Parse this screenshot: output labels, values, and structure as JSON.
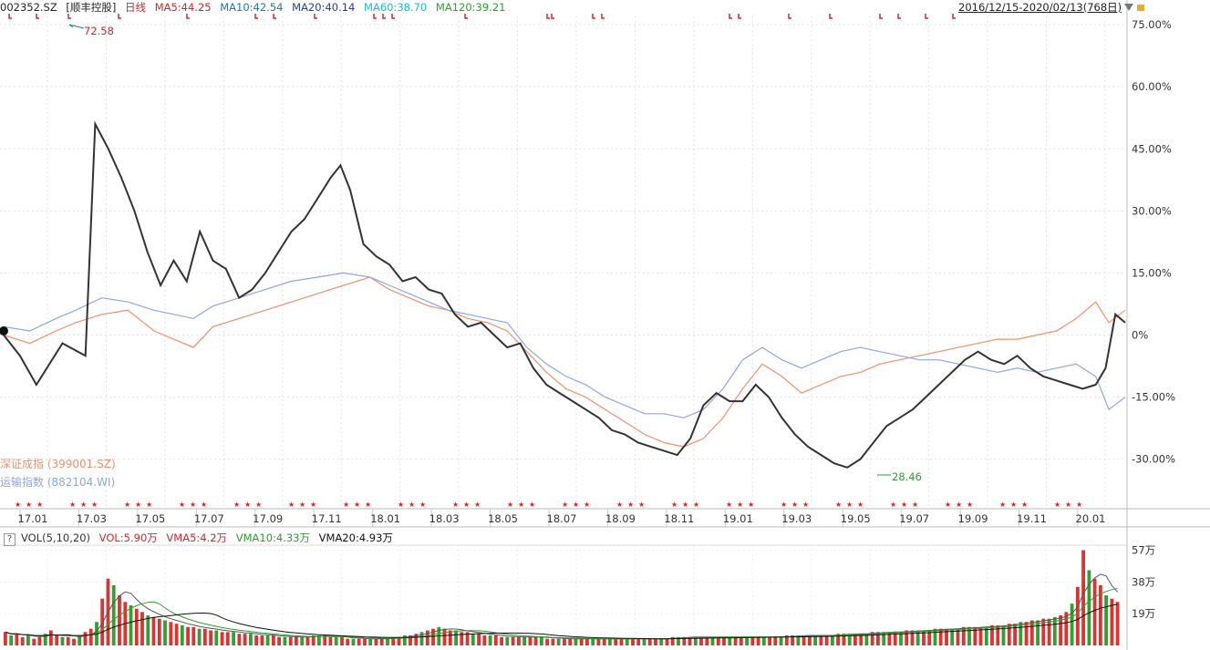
{
  "header": {
    "code": "002352.SZ",
    "name": "[顺丰控股]",
    "period": "日线",
    "ma": [
      {
        "label": "MA5:44.25",
        "color": "#d62728"
      },
      {
        "label": "MA10:42.54",
        "color": "#1f77b4"
      },
      {
        "label": "MA20:40.14",
        "color": "#1f3fa8"
      },
      {
        "label": "MA60:38.70",
        "color": "#17becf"
      },
      {
        "label": "MA120:39.21",
        "color": "#2ca02c"
      }
    ],
    "range": "2016/12/15-2020/02/13(768日)"
  },
  "legend": {
    "szse": "深证成指 (399001.SZ)",
    "transport": "运输指数 (882104.WI)"
  },
  "volume_header": {
    "help": "?",
    "title": "VOL(5,10,20)",
    "vol": "VOL:5.90万",
    "vma5": "VMA5:4.2万",
    "vma10": "VMA10:4.33万",
    "vma20": "VMA20:4.93万"
  },
  "chart_data": [
    {
      "type": "line",
      "title": "",
      "x_ticks": [
        "17.01",
        "17.03",
        "17.05",
        "17.07",
        "17.09",
        "17.11",
        "18.01",
        "18.03",
        "18.05",
        "18.07",
        "18.09",
        "18.11",
        "19.01",
        "19.03",
        "19.05",
        "19.07",
        "19.09",
        "19.11",
        "20.01"
      ],
      "y_ticks": [
        "75.00%",
        "60.00%",
        "45.00%",
        "30.00%",
        "15.00%",
        "0%",
        "-15.00%",
        "-30.00%"
      ],
      "ylim": [
        -38,
        77
      ],
      "annotations": {
        "high": "72.58",
        "low": "28.46"
      },
      "colors": {
        "stock": "#333333",
        "szse": "#f0906a",
        "transport": "#8ca6e6"
      },
      "series": [
        {
          "key": "stock",
          "points": [
            [
              0,
              0
            ],
            [
              5,
              -5
            ],
            [
              10,
              -12
            ],
            [
              18,
              -2
            ],
            [
              25,
              -5
            ],
            [
              28,
              51
            ],
            [
              32,
              45
            ],
            [
              36,
              38
            ],
            [
              40,
              30
            ],
            [
              44,
              20
            ],
            [
              48,
              12
            ],
            [
              52,
              18
            ],
            [
              56,
              13
            ],
            [
              60,
              25
            ],
            [
              64,
              18
            ],
            [
              68,
              16
            ],
            [
              72,
              9
            ],
            [
              76,
              11
            ],
            [
              80,
              15
            ],
            [
              84,
              20
            ],
            [
              88,
              25
            ],
            [
              92,
              28
            ],
            [
              96,
              33
            ],
            [
              100,
              38
            ],
            [
              103,
              41
            ],
            [
              106,
              35
            ],
            [
              110,
              22
            ],
            [
              114,
              19
            ],
            [
              118,
              17
            ],
            [
              122,
              13
            ],
            [
              126,
              14
            ],
            [
              130,
              11
            ],
            [
              134,
              10
            ],
            [
              138,
              5
            ],
            [
              142,
              2
            ],
            [
              146,
              3
            ],
            [
              150,
              0
            ],
            [
              154,
              -3
            ],
            [
              158,
              -2
            ],
            [
              162,
              -8
            ],
            [
              166,
              -12
            ],
            [
              170,
              -14
            ],
            [
              174,
              -16
            ],
            [
              178,
              -18
            ],
            [
              182,
              -20
            ],
            [
              186,
              -23
            ],
            [
              190,
              -24
            ],
            [
              194,
              -26
            ],
            [
              198,
              -27
            ],
            [
              202,
              -28
            ],
            [
              206,
              -29
            ],
            [
              210,
              -25
            ],
            [
              214,
              -17
            ],
            [
              218,
              -14
            ],
            [
              222,
              -16
            ],
            [
              226,
              -16
            ],
            [
              230,
              -12
            ],
            [
              234,
              -15
            ],
            [
              238,
              -20
            ],
            [
              242,
              -24
            ],
            [
              246,
              -27
            ],
            [
              250,
              -29
            ],
            [
              254,
              -31
            ],
            [
              258,
              -32
            ],
            [
              262,
              -30
            ],
            [
              266,
              -26
            ],
            [
              270,
              -22
            ],
            [
              274,
              -20
            ],
            [
              278,
              -18
            ],
            [
              282,
              -15
            ],
            [
              286,
              -12
            ],
            [
              290,
              -9
            ],
            [
              294,
              -6
            ],
            [
              298,
              -4
            ],
            [
              302,
              -6
            ],
            [
              306,
              -7
            ],
            [
              310,
              -5
            ],
            [
              314,
              -8
            ],
            [
              318,
              -10
            ],
            [
              322,
              -11
            ],
            [
              326,
              -12
            ],
            [
              330,
              -13
            ],
            [
              334,
              -12
            ],
            [
              337,
              -8
            ],
            [
              340,
              5
            ],
            [
              343,
              3
            ]
          ]
        },
        {
          "key": "szse",
          "points": [
            [
              0,
              0
            ],
            [
              8,
              -2
            ],
            [
              16,
              1
            ],
            [
              22,
              3
            ],
            [
              30,
              5
            ],
            [
              38,
              6
            ],
            [
              46,
              1
            ],
            [
              52,
              -1
            ],
            [
              58,
              -3
            ],
            [
              64,
              2
            ],
            [
              72,
              4
            ],
            [
              80,
              6
            ],
            [
              88,
              8
            ],
            [
              96,
              10
            ],
            [
              104,
              12
            ],
            [
              112,
              14
            ],
            [
              118,
              11
            ],
            [
              124,
              9
            ],
            [
              130,
              7
            ],
            [
              136,
              6
            ],
            [
              142,
              4
            ],
            [
              148,
              3
            ],
            [
              154,
              1
            ],
            [
              160,
              -4
            ],
            [
              166,
              -9
            ],
            [
              172,
              -13
            ],
            [
              178,
              -15
            ],
            [
              184,
              -18
            ],
            [
              190,
              -21
            ],
            [
              196,
              -24
            ],
            [
              202,
              -26
            ],
            [
              208,
              -27
            ],
            [
              214,
              -25
            ],
            [
              220,
              -20
            ],
            [
              226,
              -13
            ],
            [
              232,
              -7
            ],
            [
              238,
              -10
            ],
            [
              244,
              -14
            ],
            [
              250,
              -12
            ],
            [
              256,
              -10
            ],
            [
              262,
              -9
            ],
            [
              268,
              -7
            ],
            [
              274,
              -6
            ],
            [
              280,
              -5
            ],
            [
              286,
              -4
            ],
            [
              292,
              -3
            ],
            [
              298,
              -2
            ],
            [
              304,
              -1
            ],
            [
              310,
              -1
            ],
            [
              316,
              0
            ],
            [
              322,
              1
            ],
            [
              328,
              4
            ],
            [
              334,
              8
            ],
            [
              338,
              3
            ],
            [
              343,
              6
            ]
          ]
        },
        {
          "key": "transport",
          "points": [
            [
              0,
              2
            ],
            [
              8,
              1
            ],
            [
              16,
              4
            ],
            [
              22,
              6
            ],
            [
              30,
              9
            ],
            [
              38,
              8
            ],
            [
              46,
              6
            ],
            [
              52,
              5
            ],
            [
              58,
              4
            ],
            [
              64,
              7
            ],
            [
              72,
              9
            ],
            [
              80,
              11
            ],
            [
              88,
              13
            ],
            [
              96,
              14
            ],
            [
              104,
              15
            ],
            [
              112,
              14
            ],
            [
              118,
              12
            ],
            [
              124,
              10
            ],
            [
              130,
              8
            ],
            [
              136,
              6
            ],
            [
              142,
              5
            ],
            [
              148,
              4
            ],
            [
              154,
              3
            ],
            [
              160,
              -3
            ],
            [
              166,
              -7
            ],
            [
              172,
              -10
            ],
            [
              178,
              -12
            ],
            [
              184,
              -15
            ],
            [
              190,
              -17
            ],
            [
              196,
              -19
            ],
            [
              202,
              -19
            ],
            [
              208,
              -20
            ],
            [
              214,
              -18
            ],
            [
              220,
              -13
            ],
            [
              226,
              -6
            ],
            [
              232,
              -3
            ],
            [
              238,
              -6
            ],
            [
              244,
              -8
            ],
            [
              250,
              -6
            ],
            [
              256,
              -4
            ],
            [
              262,
              -3
            ],
            [
              268,
              -4
            ],
            [
              274,
              -5
            ],
            [
              280,
              -6
            ],
            [
              286,
              -6
            ],
            [
              292,
              -7
            ],
            [
              298,
              -8
            ],
            [
              304,
              -9
            ],
            [
              310,
              -8
            ],
            [
              316,
              -9
            ],
            [
              322,
              -8
            ],
            [
              328,
              -7
            ],
            [
              334,
              -10
            ],
            [
              338,
              -18
            ],
            [
              343,
              -15
            ]
          ]
        }
      ]
    },
    {
      "type": "bar",
      "title": "",
      "y_ticks": [
        "57万",
        "38万",
        "19万"
      ],
      "ylim": [
        0,
        60
      ],
      "colors": {
        "up": "#e03030",
        "down": "#30a030",
        "ma5": "#555555",
        "ma10": "#2ca02c",
        "ma20": "#111111"
      },
      "values": [
        8,
        6,
        7,
        5,
        6,
        4,
        5,
        7,
        9,
        6,
        5,
        5,
        4,
        6,
        8,
        10,
        14,
        28,
        40,
        36,
        30,
        26,
        24,
        22,
        20,
        18,
        17,
        16,
        15,
        14,
        13,
        12,
        11,
        11,
        10,
        10,
        9,
        9,
        8,
        8,
        8,
        7,
        7,
        7,
        6,
        6,
        6,
        6,
        5,
        5,
        5,
        5,
        5,
        5,
        6,
        6,
        6,
        5,
        5,
        5,
        4,
        4,
        4,
        4,
        4,
        4,
        4,
        4,
        5,
        5,
        6,
        6,
        7,
        8,
        9,
        10,
        11,
        10,
        9,
        9,
        8,
        8,
        7,
        7,
        6,
        6,
        6,
        5,
        5,
        5,
        5,
        5,
        5,
        5,
        5,
        4,
        4,
        4,
        4,
        4,
        4,
        4,
        4,
        4,
        4,
        4,
        4,
        4,
        4,
        4,
        4,
        4,
        4,
        4,
        4,
        4,
        4,
        5,
        5,
        5,
        5,
        5,
        5,
        5,
        5,
        5,
        5,
        5,
        5,
        5,
        5,
        5,
        5,
        5,
        5,
        5,
        5,
        6,
        6,
        6,
        6,
        6,
        6,
        6,
        6,
        6,
        7,
        7,
        7,
        7,
        7,
        7,
        8,
        8,
        8,
        8,
        8,
        8,
        9,
        9,
        9,
        9,
        9,
        10,
        10,
        10,
        10,
        10,
        11,
        11,
        11,
        11,
        11,
        12,
        12,
        12,
        13,
        13,
        14,
        14,
        15,
        15,
        16,
        16,
        17,
        18,
        20,
        25,
        35,
        57,
        45,
        40,
        36,
        30,
        28,
        26
      ]
    }
  ]
}
